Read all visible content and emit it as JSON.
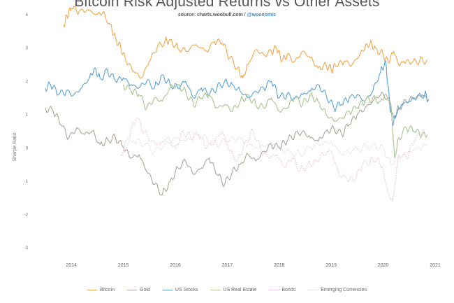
{
  "chart_data": {
    "type": "line",
    "title": "Bitcoin Risk Adjusted Returns vs Other Assets",
    "subtitle": {
      "source_prefix": "source: charts.woobull.com /",
      "handle": "@woonomic"
    },
    "ylabel": "Sharpe Ratio",
    "xlabel": "",
    "x_ticks": [
      "2014",
      "2015",
      "2016",
      "2017",
      "2018",
      "2019",
      "2020",
      "2021"
    ],
    "x_range": [
      2013.5,
      2021.0
    ],
    "y_ticks": [
      "4",
      "3",
      "2",
      "1",
      "0",
      "-1",
      "-2",
      "-3"
    ],
    "y_range": [
      -3,
      4
    ],
    "grid": false,
    "legend_position": "bottom",
    "series": [
      {
        "name": "Bitcoin",
        "color": "#f4a64a",
        "dash": false,
        "x": [
          2013.85,
          2013.92,
          2014.0,
          2014.15,
          2014.3,
          2014.5,
          2014.6,
          2014.75,
          2014.85,
          2014.95,
          2015.05,
          2015.2,
          2015.35,
          2015.5,
          2015.65,
          2015.8,
          2015.9,
          2016.05,
          2016.2,
          2016.4,
          2016.6,
          2016.75,
          2016.9,
          2017.05,
          2017.2,
          2017.3,
          2017.4,
          2017.55,
          2017.7,
          2017.85,
          2017.95,
          2018.05,
          2018.15,
          2018.3,
          2018.45,
          2018.6,
          2018.75,
          2018.9,
          2019.0,
          2019.1,
          2019.25,
          2019.4,
          2019.55,
          2019.65,
          2019.75,
          2019.85,
          2020.0,
          2020.1,
          2020.2,
          2020.3,
          2020.4,
          2020.55,
          2020.7,
          2020.85
        ],
        "y": [
          3.7,
          3.95,
          4.2,
          4.1,
          4.15,
          4.0,
          4.05,
          3.7,
          3.3,
          3.0,
          2.6,
          2.3,
          2.1,
          2.6,
          3.0,
          3.2,
          3.25,
          3.0,
          2.9,
          3.1,
          2.9,
          3.2,
          3.15,
          2.7,
          2.4,
          2.1,
          2.5,
          2.95,
          2.8,
          2.9,
          3.0,
          2.6,
          2.8,
          2.6,
          2.9,
          2.7,
          2.4,
          2.5,
          2.35,
          2.45,
          2.6,
          2.5,
          2.8,
          3.0,
          3.15,
          3.0,
          2.8,
          2.55,
          2.9,
          2.5,
          2.6,
          2.55,
          2.6,
          2.65
        ]
      },
      {
        "name": "Gold",
        "color": "#b0a49c",
        "dash": false,
        "x": [
          2013.5,
          2013.65,
          2013.8,
          2013.95,
          2014.1,
          2014.25,
          2014.4,
          2014.55,
          2014.7,
          2014.85,
          2015.0,
          2015.15,
          2015.3,
          2015.45,
          2015.6,
          2015.75,
          2015.9,
          2016.05,
          2016.2,
          2016.35,
          2016.5,
          2016.65,
          2016.8,
          2016.95,
          2017.1,
          2017.25,
          2017.4,
          2017.55,
          2017.7,
          2017.85,
          2018.0,
          2018.15,
          2018.3,
          2018.45,
          2018.6,
          2018.75,
          2018.9,
          2019.05,
          2019.2,
          2019.35,
          2019.5,
          2019.65,
          2019.8,
          2019.95,
          2020.1,
          2020.2,
          2020.3,
          2020.45,
          2020.6,
          2020.75,
          2020.85
        ],
        "y": [
          1.2,
          1.1,
          0.7,
          0.3,
          0.6,
          0.4,
          0.5,
          0.1,
          0.25,
          0.3,
          0.0,
          -0.3,
          -0.2,
          -0.7,
          -1.1,
          -1.4,
          -1.0,
          -0.6,
          -0.4,
          -0.8,
          -0.6,
          -0.3,
          -0.8,
          -1.1,
          -0.7,
          -0.5,
          -0.2,
          -0.4,
          -0.1,
          0.1,
          0.0,
          0.2,
          0.4,
          0.5,
          0.3,
          0.2,
          0.5,
          0.6,
          0.4,
          0.7,
          1.0,
          1.2,
          1.4,
          1.6,
          1.5,
          0.9,
          1.2,
          1.4,
          1.5,
          1.6,
          1.5
        ]
      },
      {
        "name": "US Stocks",
        "color": "#5ba3d6",
        "dash": false,
        "x": [
          2013.5,
          2013.6,
          2013.75,
          2013.9,
          2014.05,
          2014.2,
          2014.35,
          2014.45,
          2014.55,
          2014.7,
          2014.85,
          2015.0,
          2015.15,
          2015.3,
          2015.45,
          2015.6,
          2015.75,
          2015.9,
          2016.05,
          2016.2,
          2016.35,
          2016.5,
          2016.65,
          2016.8,
          2016.95,
          2017.1,
          2017.25,
          2017.4,
          2017.55,
          2017.7,
          2017.85,
          2018.0,
          2018.15,
          2018.3,
          2018.45,
          2018.6,
          2018.75,
          2018.9,
          2019.05,
          2019.2,
          2019.35,
          2019.5,
          2019.65,
          2019.8,
          2019.95,
          2020.05,
          2020.12,
          2020.18,
          2020.25,
          2020.35,
          2020.5,
          2020.65,
          2020.8,
          2020.88
        ],
        "y": [
          1.8,
          1.9,
          1.6,
          1.7,
          1.6,
          1.8,
          2.1,
          2.4,
          2.1,
          2.3,
          2.0,
          2.1,
          1.9,
          1.8,
          2.0,
          1.8,
          2.2,
          1.9,
          1.8,
          2.0,
          1.5,
          1.8,
          1.6,
          1.8,
          2.0,
          1.9,
          1.7,
          1.5,
          1.7,
          1.8,
          2.0,
          1.5,
          1.6,
          1.5,
          1.6,
          1.7,
          1.9,
          1.6,
          1.2,
          1.3,
          1.5,
          1.6,
          1.4,
          1.7,
          2.3,
          2.6,
          1.4,
          0.7,
          1.0,
          1.3,
          1.4,
          1.5,
          1.6,
          1.45
        ]
      },
      {
        "name": "US Real Estate",
        "color": "#a8c48f",
        "dash": false,
        "x": [
          2015.0,
          2015.15,
          2015.3,
          2015.45,
          2015.6,
          2015.75,
          2015.9,
          2016.05,
          2016.2,
          2016.35,
          2016.5,
          2016.65,
          2016.8,
          2016.95,
          2017.1,
          2017.25,
          2017.4,
          2017.55,
          2017.7,
          2017.85,
          2018.0,
          2018.15,
          2018.3,
          2018.45,
          2018.6,
          2018.75,
          2018.9,
          2019.05,
          2019.2,
          2019.35,
          2019.5,
          2019.65,
          2019.8,
          2019.95,
          2020.05,
          2020.15,
          2020.22,
          2020.3,
          2020.45,
          2020.6,
          2020.75,
          2020.85
        ],
        "y": [
          1.9,
          1.7,
          1.6,
          1.2,
          1.5,
          1.4,
          1.8,
          1.9,
          1.7,
          1.3,
          1.5,
          1.6,
          1.2,
          1.3,
          1.1,
          1.4,
          1.6,
          1.3,
          1.2,
          1.5,
          1.1,
          1.2,
          1.5,
          1.3,
          1.6,
          1.4,
          1.0,
          0.8,
          0.9,
          1.1,
          1.2,
          1.4,
          1.5,
          1.4,
          1.6,
          1.3,
          -0.3,
          0.3,
          0.6,
          0.5,
          0.4,
          0.4
        ]
      },
      {
        "name": "Bonds",
        "color": "#e6b8d0",
        "dash": true,
        "x": [
          2014.95,
          2015.1,
          2015.25,
          2015.4,
          2015.55,
          2015.7,
          2015.85,
          2016.0,
          2016.15,
          2016.3,
          2016.45,
          2016.6,
          2016.75,
          2016.9,
          2017.05,
          2017.2,
          2017.35,
          2017.5,
          2017.65,
          2017.8,
          2017.95,
          2018.1,
          2018.25,
          2018.4,
          2018.55,
          2018.7,
          2018.85,
          2019.0,
          2019.15,
          2019.3,
          2019.45,
          2019.6,
          2019.75,
          2019.9,
          2020.0,
          2020.1,
          2020.18,
          2020.3,
          2020.45,
          2020.6,
          2020.75,
          2020.85
        ],
        "y": [
          -0.2,
          0.3,
          0.9,
          0.5,
          0.2,
          0.1,
          0.3,
          0.0,
          0.5,
          0.3,
          0.4,
          0.0,
          0.2,
          0.5,
          -0.1,
          -0.4,
          0.2,
          0.5,
          -0.1,
          -0.3,
          -0.2,
          -0.6,
          -0.3,
          -0.7,
          -0.5,
          -0.4,
          -0.2,
          -0.1,
          -0.8,
          -0.9,
          -1.0,
          -0.5,
          -0.4,
          -0.3,
          -0.7,
          -1.4,
          -1.6,
          -0.2,
          -0.3,
          0.2,
          0.5,
          0.4
        ]
      },
      {
        "name": "Emerging Currencies",
        "color": "#dcd0d8",
        "dash": true,
        "x": [
          2015.0,
          2015.2,
          2015.4,
          2015.6,
          2015.8,
          2016.0,
          2016.2,
          2016.4,
          2016.6,
          2016.8,
          2017.0,
          2017.2,
          2017.4,
          2017.6,
          2017.8,
          2018.0,
          2018.2,
          2018.4,
          2018.6,
          2018.8,
          2019.0,
          2019.2,
          2019.4,
          2019.6,
          2019.8,
          2020.0,
          2020.15,
          2020.3,
          2020.5,
          2020.7,
          2020.85
        ],
        "y": [
          0.0,
          0.2,
          0.1,
          -0.1,
          0.1,
          0.3,
          0.2,
          0.4,
          0.3,
          0.1,
          0.2,
          0.3,
          0.1,
          0.0,
          0.1,
          0.0,
          -0.1,
          -0.2,
          0.0,
          0.1,
          0.2,
          -0.2,
          -0.1,
          0.0,
          0.1,
          0.0,
          -0.5,
          -0.3,
          -0.1,
          0.0,
          0.1
        ]
      }
    ]
  }
}
